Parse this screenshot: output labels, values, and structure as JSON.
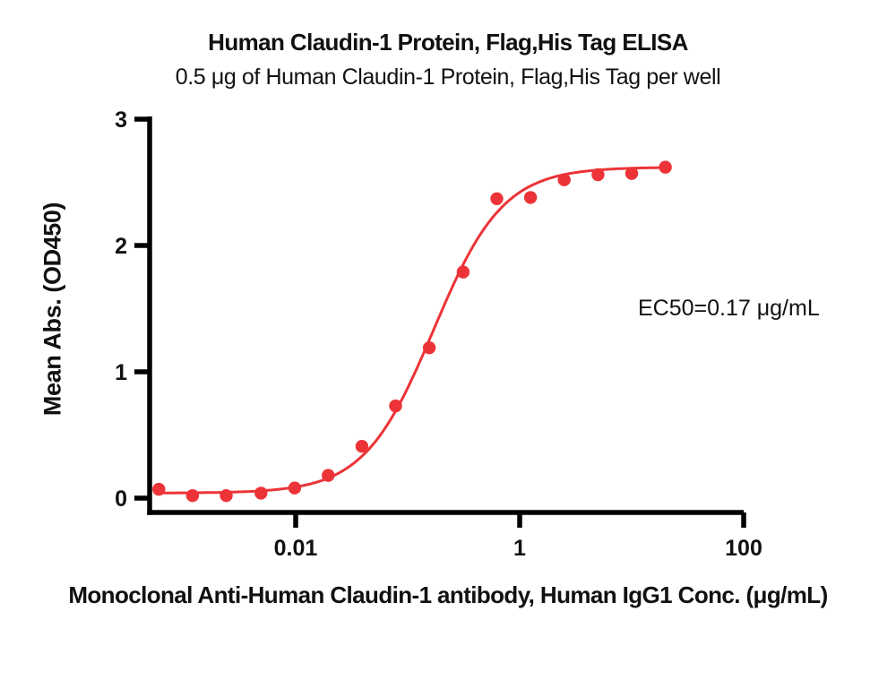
{
  "chart_data": {
    "type": "scatter",
    "title": "Human Claudin-1 Protein, Flag,His Tag ELISA",
    "subtitle": "0.5 μg of Human Claudin-1 Protein, Flag,His Tag per well",
    "xlabel": "Monoclonal Anti-Human Claudin-1 antibody, Human IgG1 Conc. (μg/mL)",
    "ylabel": "Mean Abs. (OD450)",
    "annotation": "EC50=0.17 μg/mL",
    "x_scale": "log",
    "x": [
      0.0006,
      0.0012,
      0.0024,
      0.0049,
      0.0098,
      0.0195,
      0.039,
      0.078,
      0.156,
      0.3125,
      0.625,
      1.25,
      2.5,
      5,
      10,
      20
    ],
    "y": [
      0.07,
      0.02,
      0.02,
      0.04,
      0.08,
      0.18,
      0.41,
      0.73,
      1.19,
      1.79,
      2.37,
      2.38,
      2.52,
      2.56,
      2.57,
      2.62
    ],
    "x_ticks": [
      0.01,
      1,
      100
    ],
    "x_tick_labels": [
      "0.01",
      "1",
      "100"
    ],
    "y_ticks": [
      0,
      1,
      2,
      3
    ],
    "y_tick_labels": [
      "0",
      "1",
      "2",
      "3"
    ],
    "ylim": [
      0,
      3
    ],
    "xlim": [
      0.0005,
      100
    ],
    "grid": false,
    "legend": "none",
    "fit": {
      "model": "4PL",
      "bottom": 0.04,
      "top": 2.62,
      "ec50": 0.17,
      "hill": 1.4
    },
    "marker_color": "#EC3438",
    "line_color": "#EC3438",
    "axis_color": "#000000",
    "text_color": "#111111"
  }
}
